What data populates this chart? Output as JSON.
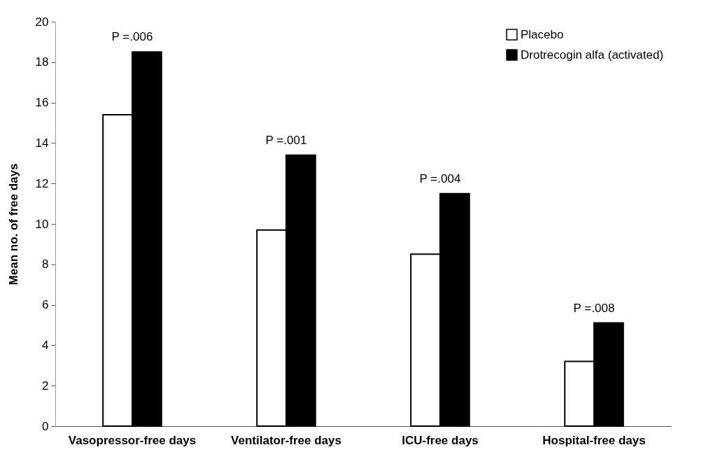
{
  "chart_data": {
    "type": "bar",
    "ylabel": "Mean no. of free days",
    "categories": [
      "Vasopressor-free days",
      "Ventilator-free days",
      "ICU-free days",
      "Hospital-free days"
    ],
    "series": [
      {
        "name": "Placebo",
        "color": "#ffffff",
        "values": [
          15.4,
          9.7,
          8.5,
          3.2
        ]
      },
      {
        "name": "Drotrecogin alfa (activated)",
        "color": "#000000",
        "values": [
          18.5,
          13.4,
          11.5,
          5.1
        ]
      }
    ],
    "ylim": [
      0,
      20
    ],
    "yticks": [
      0,
      2,
      4,
      6,
      8,
      10,
      12,
      14,
      16,
      18,
      20
    ],
    "legend": "top right",
    "annotations": [
      {
        "text": "P =.006",
        "x": "Vasopressor-free days",
        "y": 18.5
      },
      {
        "text": "P =.001",
        "x": "Ventilator-free days",
        "y": 13.4
      },
      {
        "text": "P =.004",
        "x": "ICU-free days",
        "y": 11.5
      },
      {
        "text": "P =.008",
        "x": "Hospital-free days",
        "y": 5.1
      }
    ]
  }
}
